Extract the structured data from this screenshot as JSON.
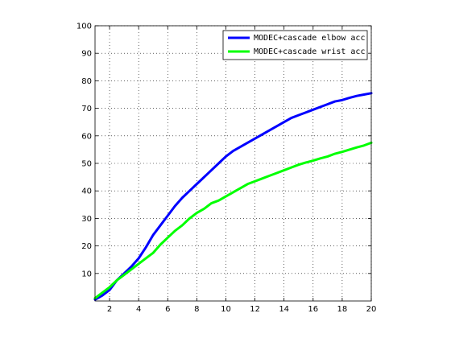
{
  "chart_data": {
    "type": "line",
    "x": [
      1,
      1.5,
      2,
      2.5,
      3,
      3.5,
      4,
      4.5,
      5,
      5.5,
      6,
      6.5,
      7,
      7.5,
      8,
      8.5,
      9,
      9.5,
      10,
      10.5,
      11,
      11.5,
      12,
      12.5,
      13,
      13.5,
      14,
      14.5,
      15,
      15.5,
      16,
      16.5,
      17,
      17.5,
      18,
      18.5,
      19,
      19.5,
      20
    ],
    "series": [
      {
        "name": "MODEC+cascade elbow acc",
        "color": "#0000ff",
        "values": [
          0.5,
          2,
          4,
          7.5,
          10,
          12.5,
          15.5,
          19.5,
          24,
          27.5,
          31,
          34.5,
          37.5,
          40,
          42.5,
          45,
          47.5,
          50,
          52.5,
          54.5,
          56,
          57.5,
          59,
          60.5,
          62,
          63.5,
          65,
          66.5,
          67.5,
          68.5,
          69.5,
          70.5,
          71.5,
          72.5,
          73,
          73.8,
          74.5,
          75,
          75.5
        ]
      },
      {
        "name": "MODEC+cascade wrist acc",
        "color": "#00ff00",
        "values": [
          1,
          3,
          5,
          7.5,
          9.5,
          11.5,
          13.5,
          15.5,
          17.5,
          20.5,
          23,
          25.5,
          27.5,
          30,
          32,
          33.5,
          35.5,
          36.5,
          38,
          39.5,
          41,
          42.5,
          43.5,
          44.5,
          45.5,
          46.5,
          47.5,
          48.5,
          49.5,
          50.3,
          51,
          51.8,
          52.5,
          53.5,
          54.2,
          55,
          55.8,
          56.5,
          57.5
        ]
      }
    ],
    "xlim": [
      1,
      20
    ],
    "ylim": [
      0,
      100
    ],
    "xticks": [
      2,
      4,
      6,
      8,
      10,
      12,
      14,
      16,
      18,
      20
    ],
    "yticks": [
      10,
      20,
      30,
      40,
      50,
      60,
      70,
      80,
      90,
      100
    ],
    "xtick_labels": [
      "2",
      "4",
      "6",
      "8",
      "10",
      "12",
      "14",
      "16",
      "18",
      "20"
    ],
    "ytick_labels": [
      "10",
      "20",
      "30",
      "40",
      "50",
      "60",
      "70",
      "80",
      "90",
      "100"
    ],
    "grid": true,
    "legend": "top-right",
    "title": "",
    "xlabel": "",
    "ylabel": ""
  }
}
